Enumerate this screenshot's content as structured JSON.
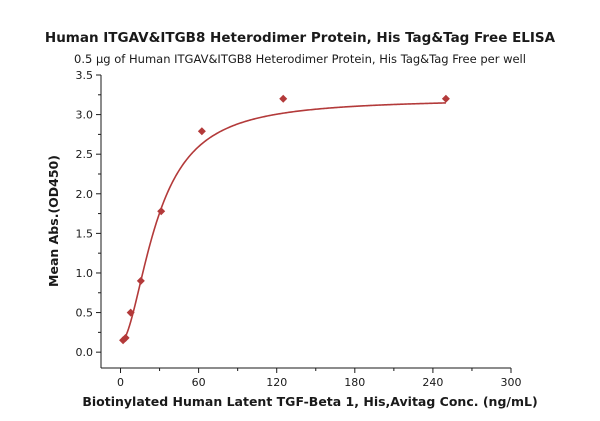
{
  "chart_data": {
    "type": "scatter",
    "title": "Human ITGAV&ITGB8 Heterodimer Protein, His Tag&Tag Free ELISA",
    "subtitle": "0.5 μg of Human ITGAV&ITGB8 Heterodimer Protein, His Tag&Tag Free per well",
    "xlabel": "Biotinylated Human Latent TGF-Beta 1, His,Avitag Conc. (ng/mL)",
    "ylabel": "Mean Abs.(OD450)",
    "xlim": [
      -15,
      300
    ],
    "ylim": [
      -0.2,
      3.5
    ],
    "x_ticks": [
      0,
      60,
      120,
      180,
      240,
      300
    ],
    "y_ticks": [
      0.0,
      0.5,
      1.0,
      1.5,
      2.0,
      2.5,
      3.0,
      3.5
    ],
    "x_tick_labels": [
      "0",
      "60",
      "120",
      "180",
      "240",
      "300"
    ],
    "y_tick_labels": [
      "0.0",
      "0.5",
      "1.0",
      "1.5",
      "2.0",
      "2.5",
      "3.0",
      "3.5"
    ],
    "grid": false,
    "marker": "diamond",
    "color": "#b33a3a",
    "series": [
      {
        "x": [
          1.95,
          3.9,
          7.8,
          15.6,
          31.25,
          62.5,
          125,
          250
        ],
        "y": [
          0.15,
          0.18,
          0.5,
          0.9,
          1.78,
          2.79,
          3.2,
          3.2
        ],
        "fit": "sigmoid"
      }
    ]
  }
}
